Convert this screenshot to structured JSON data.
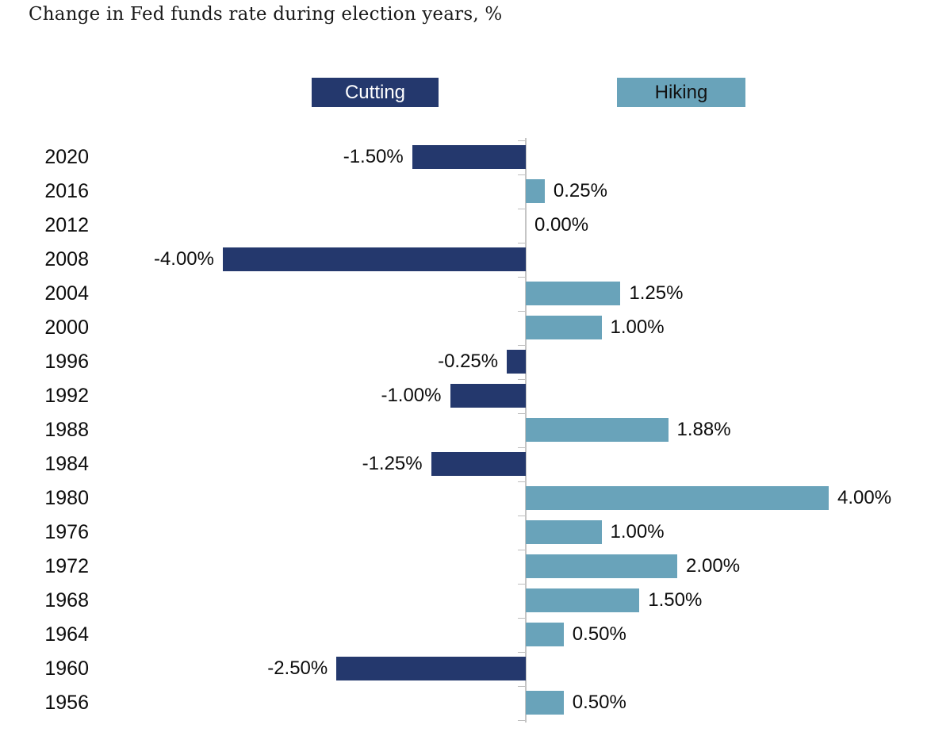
{
  "title": "Change in Fed funds rate during election years, %",
  "legend": {
    "cutting_label": "Cutting",
    "hiking_label": "Hiking"
  },
  "colors": {
    "cutting": "#24386d",
    "hiking": "#69a3ba",
    "axis": "#c5c5c5",
    "tick": "#bdbdbd",
    "title_text": "#1a1a1a",
    "label_text": "#0d0d0d",
    "year_text": "#0d0d0d",
    "legend_cutting_text": "#ffffff",
    "legend_hiking_text": "#121212",
    "background": "#ffffff"
  },
  "chart_data": {
    "type": "bar",
    "orientation": "horizontal",
    "title": "Change in Fed funds rate during election years, %",
    "xlabel": "",
    "ylabel": "",
    "xlim": [
      -4.5,
      4.5
    ],
    "grid": false,
    "legend_position": "top",
    "legend": [
      "Cutting",
      "Hiking"
    ],
    "series_rule": "negative values belong to Cutting (navy), positive values to Hiking (teal)",
    "categories": [
      "2020",
      "2016",
      "2012",
      "2008",
      "2004",
      "2000",
      "1996",
      "1992",
      "1988",
      "1984",
      "1980",
      "1976",
      "1972",
      "1968",
      "1964",
      "1960",
      "1956"
    ],
    "values": [
      -1.5,
      0.25,
      0.0,
      -4.0,
      1.25,
      1.0,
      -0.25,
      -1.0,
      1.88,
      -1.25,
      4.0,
      1.0,
      2.0,
      1.5,
      0.5,
      -2.5,
      0.5
    ],
    "value_labels": [
      "-1.50%",
      "0.25%",
      "0.00%",
      "-4.00%",
      "1.25%",
      "1.00%",
      "-0.25%",
      "-1.00%",
      "1.88%",
      "-1.25%",
      "4.00%",
      "1.00%",
      "2.00%",
      "1.50%",
      "0.50%",
      "-2.50%",
      "0.50%"
    ]
  }
}
